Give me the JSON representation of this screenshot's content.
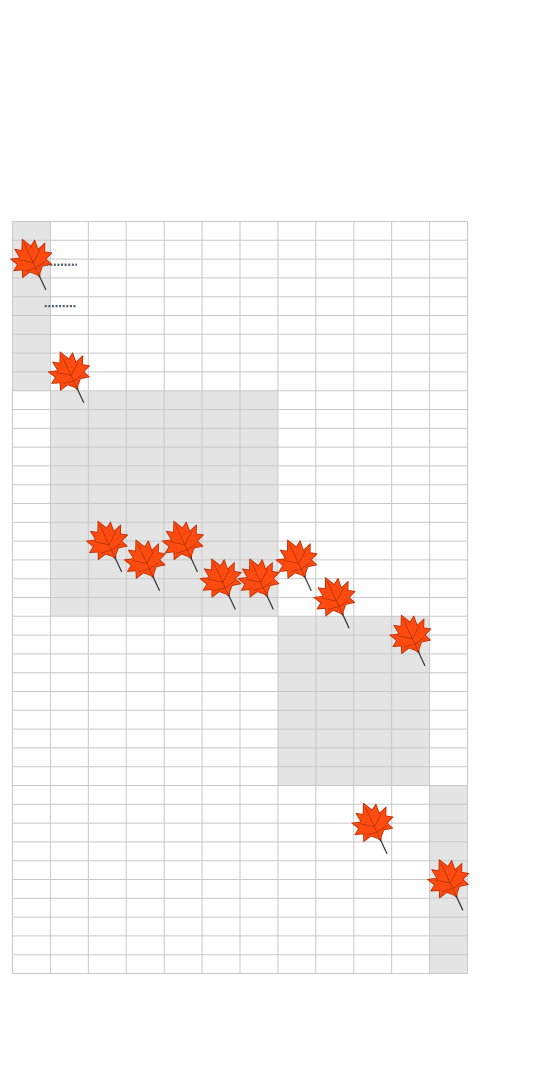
{
  "chart_data": {
    "type": "scatter",
    "marker": "maple-leaf-icon",
    "grid": true,
    "grid_columns": 12,
    "grid_rows": 40,
    "shaded_regions": [
      {
        "col_start": 0,
        "col_end": 1,
        "row_start": 0,
        "row_end": 9
      },
      {
        "col_start": 1,
        "col_end": 7,
        "row_start": 9,
        "row_end": 21
      },
      {
        "col_start": 7,
        "col_end": 11,
        "row_start": 21,
        "row_end": 30
      },
      {
        "col_start": 11,
        "col_end": 12,
        "row_start": 30,
        "row_end": 40
      }
    ],
    "points": [
      {
        "x": 0.5,
        "y": 2
      },
      {
        "x": 1.5,
        "y": 8
      },
      {
        "x": 2.5,
        "y": 17
      },
      {
        "x": 3.5,
        "y": 18
      },
      {
        "x": 4.5,
        "y": 17
      },
      {
        "x": 5.5,
        "y": 19
      },
      {
        "x": 6.5,
        "y": 19
      },
      {
        "x": 7.5,
        "y": 18
      },
      {
        "x": 8.5,
        "y": 20
      },
      {
        "x": 10.5,
        "y": 22
      },
      {
        "x": 9.5,
        "y": 32
      },
      {
        "x": 11.5,
        "y": 35
      }
    ],
    "dotted_markers": [
      {
        "x_start": 0.9,
        "x_end": 1.7,
        "y": 2.3
      },
      {
        "x_start": 0.85,
        "x_end": 1.7,
        "y": 4.5
      }
    ],
    "colors": {
      "leaf_fill": "#ff4a10",
      "leaf_stroke": "#b82a00",
      "leaf_vein": "#a83300",
      "grid_line": "#c8c8c8",
      "shade": "#e4e4e4",
      "dotted": "#4f5a66"
    }
  }
}
